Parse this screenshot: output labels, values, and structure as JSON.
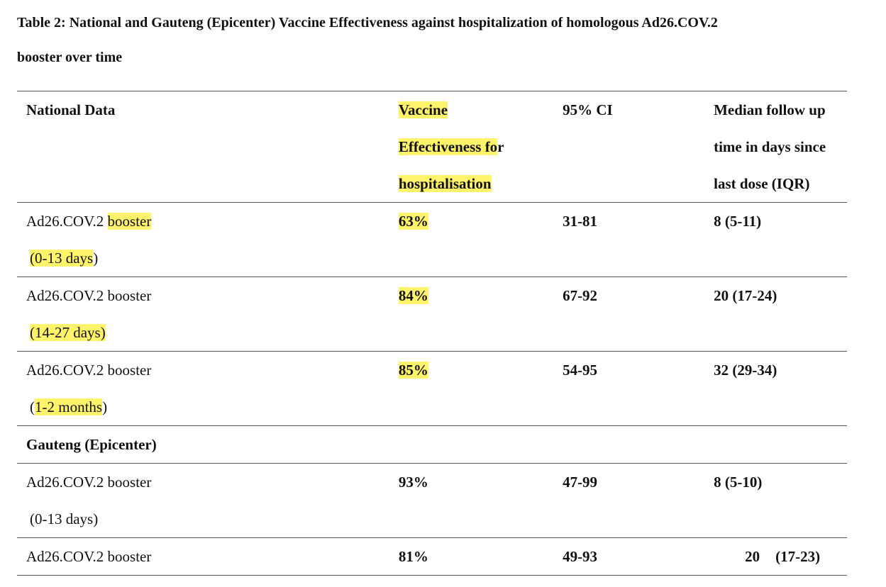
{
  "caption": {
    "line1": "Table 2: National and Gauteng (Epicenter) Vaccine Effectiveness against hospitalization of homologous Ad26.COV.2",
    "line2": "booster over time"
  },
  "header": {
    "col1": "National Data",
    "col2_line1": "Vaccine",
    "col2_line2a": "Effectiveness fo",
    "col2_line2b": "r",
    "col2_line3": "hospitalisation",
    "col3": "95% CI",
    "col4_line1": "Median follow up",
    "col4_line2": "time in days since",
    "col4_line3": "last dose (IQR)"
  },
  "national_rows": [
    {
      "name_a": "Ad26.COV.2 ",
      "name_b": "booster",
      "period_pre": "",
      "period_hl": "(0-13 days",
      "period_post": ")",
      "ve": "63%",
      "ci": "31-81",
      "followup": "8 (5-11)"
    },
    {
      "name_a": "Ad26.COV.2 booster",
      "name_b": "",
      "period_pre": "",
      "period_hl": "(14-27 days)",
      "period_post": "",
      "ve": "84%",
      "ci": "67-92",
      "followup": "20 (17-24)"
    },
    {
      "name_a": "Ad26.COV.2 booster",
      "name_b": "",
      "period_pre": "(",
      "period_hl": "1-2 months",
      "period_post": ")",
      "ve": "85%",
      "ci": "54-95",
      "followup": "32 (29-34)"
    }
  ],
  "section2": {
    "title": "Gauteng (Epicenter)"
  },
  "gauteng_rows": [
    {
      "name": "Ad26.COV.2 booster",
      "period": "(0-13 days)",
      "ve": "93%",
      "ci": "47-99",
      "followup": "8 (5-10)"
    },
    {
      "name": "Ad26.COV.2 booster",
      "ve": "81%",
      "ci": "49-93",
      "followup_a": "20",
      "followup_b": "(17-23)"
    }
  ]
}
